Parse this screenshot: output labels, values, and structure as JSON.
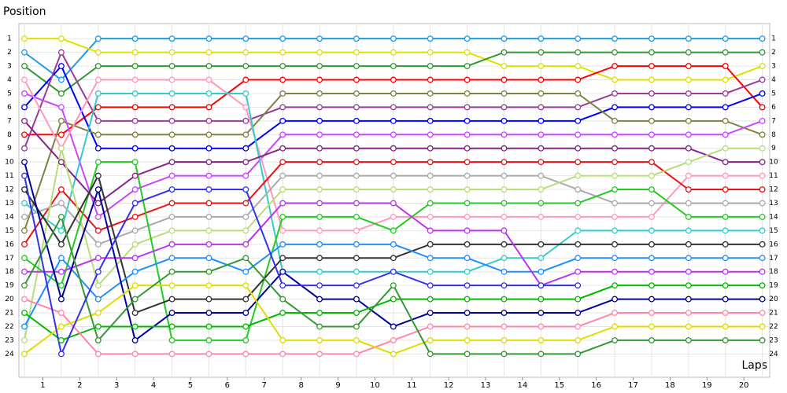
{
  "chart_data": {
    "type": "line",
    "y_label": "Position",
    "x_label": "Laps",
    "x": [
      0,
      1,
      2,
      3,
      4,
      5,
      6,
      7,
      8,
      9,
      10,
      11,
      12,
      13,
      14,
      15,
      16,
      17,
      18,
      19,
      20
    ],
    "xlim": [
      -0.15,
      20.2
    ],
    "xticks": [
      {
        "value": 0.5,
        "label": "1"
      },
      {
        "value": 1.5,
        "label": "2"
      },
      {
        "value": 2.5,
        "label": "3"
      },
      {
        "value": 3.5,
        "label": "4"
      },
      {
        "value": 4.5,
        "label": "5"
      },
      {
        "value": 5.5,
        "label": "6"
      },
      {
        "value": 6.5,
        "label": "7"
      },
      {
        "value": 7.5,
        "label": "8"
      },
      {
        "value": 8.5,
        "label": "9"
      },
      {
        "value": 9.5,
        "label": "10"
      },
      {
        "value": 10.5,
        "label": "11"
      },
      {
        "value": 11.5,
        "label": "12"
      },
      {
        "value": 12.5,
        "label": "13"
      },
      {
        "value": 13.5,
        "label": "14"
      },
      {
        "value": 14.5,
        "label": "15"
      },
      {
        "value": 15.5,
        "label": "16"
      },
      {
        "value": 16.5,
        "label": "17"
      },
      {
        "value": 17.5,
        "label": "18"
      },
      {
        "value": 18.5,
        "label": "19"
      },
      {
        "value": 19.5,
        "label": "20"
      }
    ],
    "ylim": [
      -0.1,
      25.7
    ],
    "y_inverted": true,
    "yticks": [
      1,
      2,
      3,
      4,
      5,
      6,
      7,
      8,
      9,
      10,
      11,
      12,
      13,
      14,
      15,
      16,
      17,
      18,
      19,
      20,
      21,
      22,
      23,
      24
    ],
    "grid": true,
    "series": [
      {
        "color": "#1e9be8",
        "values": [
          2,
          4,
          1,
          1,
          1,
          1,
          1,
          1,
          1,
          1,
          1,
          1,
          1,
          1,
          1,
          1,
          1,
          1,
          1,
          1,
          1
        ]
      },
      {
        "color": "#e0e000",
        "values": [
          1,
          1,
          2,
          2,
          2,
          2,
          2,
          2,
          2,
          2,
          2,
          2,
          2,
          3,
          3,
          3,
          4,
          4,
          4,
          4,
          3
        ]
      },
      {
        "color": "#2f9a2f",
        "values": [
          3,
          5,
          3,
          3,
          3,
          3,
          3,
          3,
          3,
          3,
          3,
          3,
          3,
          2,
          2,
          2,
          2,
          2,
          2,
          2,
          2
        ]
      },
      {
        "color": "#ff0000",
        "values": [
          8,
          8,
          6,
          6,
          6,
          6,
          4,
          4,
          4,
          4,
          4,
          4,
          4,
          4,
          4,
          4,
          3,
          3,
          3,
          3,
          6
        ]
      },
      {
        "color": "#0000ff",
        "values": [
          6,
          3,
          9,
          9,
          9,
          9,
          9,
          7,
          7,
          7,
          7,
          7,
          7,
          7,
          7,
          7,
          6,
          6,
          6,
          6,
          5
        ]
      },
      {
        "color": "#9a3a9a",
        "values": [
          9,
          2,
          7,
          7,
          7,
          7,
          7,
          6,
          6,
          6,
          6,
          6,
          6,
          6,
          6,
          6,
          5,
          5,
          5,
          5,
          4
        ]
      },
      {
        "color": "#808040",
        "values": [
          15,
          7,
          8,
          8,
          8,
          8,
          8,
          5,
          5,
          5,
          5,
          5,
          5,
          5,
          5,
          5,
          7,
          7,
          7,
          7,
          8
        ]
      },
      {
        "color": "#cc44ff",
        "values": [
          5,
          6,
          14,
          12,
          11,
          11,
          11,
          8,
          8,
          8,
          8,
          8,
          8,
          8,
          8,
          8,
          8,
          8,
          8,
          8,
          7
        ]
      },
      {
        "color": "#ff99bb",
        "values": [
          4,
          9,
          4,
          4,
          4,
          4,
          6,
          15,
          15,
          15,
          14,
          14,
          14,
          14,
          14,
          14,
          14,
          14,
          11,
          11,
          11
        ]
      },
      {
        "color": "#33cccc",
        "values": [
          13,
          15,
          5,
          5,
          5,
          5,
          5,
          18,
          18,
          18,
          18,
          18,
          18,
          17,
          17,
          15,
          15,
          15,
          15,
          15,
          15
        ]
      },
      {
        "color": "#882288",
        "values": [
          7,
          10,
          13,
          11,
          10,
          10,
          10,
          9,
          9,
          9,
          9,
          9,
          9,
          9,
          9,
          9,
          9,
          9,
          9,
          10,
          10
        ]
      },
      {
        "color": "#ee1111",
        "values": [
          16,
          12,
          15,
          14,
          13,
          13,
          13,
          10,
          10,
          10,
          10,
          10,
          10,
          10,
          10,
          10,
          10,
          10,
          12,
          12,
          12
        ]
      },
      {
        "color": "#aaaaaa",
        "values": [
          14,
          13,
          16,
          15,
          14,
          14,
          14,
          11,
          11,
          11,
          11,
          11,
          11,
          11,
          11,
          12,
          13,
          13,
          13,
          13,
          13
        ]
      },
      {
        "color": "#b8dd77",
        "values": [
          23,
          9,
          19,
          16,
          15,
          15,
          15,
          12,
          12,
          12,
          12,
          12,
          12,
          12,
          12,
          11,
          11,
          11,
          10,
          9,
          9
        ]
      },
      {
        "color": "#22cc22",
        "values": [
          17,
          19,
          10,
          10,
          23,
          23,
          23,
          14,
          14,
          14,
          15,
          13,
          13,
          13,
          13,
          13,
          12,
          12,
          14,
          14,
          14
        ]
      },
      {
        "color": "#333333",
        "values": [
          12,
          16,
          11,
          21,
          20,
          20,
          20,
          17,
          17,
          17,
          17,
          16,
          16,
          16,
          16,
          16,
          16,
          16,
          16,
          16,
          16
        ]
      },
      {
        "color": "#1e90ff",
        "values": [
          22,
          17,
          20,
          18,
          17,
          17,
          18,
          16,
          16,
          16,
          16,
          17,
          17,
          18,
          18,
          17,
          17,
          17,
          17,
          17,
          17
        ]
      },
      {
        "color": "#bb33ee",
        "values": [
          18,
          18,
          17,
          17,
          16,
          16,
          16,
          13,
          13,
          13,
          13,
          15,
          15,
          15,
          19,
          18,
          18,
          18,
          18,
          18,
          18
        ]
      },
      {
        "color": "#000099",
        "values": [
          10,
          20,
          12,
          23,
          21,
          21,
          21,
          18,
          20,
          20,
          22,
          21,
          21,
          21,
          21,
          21,
          20,
          20,
          20,
          20,
          20
        ]
      },
      {
        "color": "#00bb00",
        "values": [
          21,
          23,
          22,
          22,
          22,
          22,
          22,
          21,
          21,
          21,
          20,
          20,
          20,
          20,
          20,
          20,
          19,
          19,
          19,
          19,
          19
        ]
      },
      {
        "color": "#ff88aa",
        "values": [
          20,
          21,
          24,
          24,
          24,
          24,
          24,
          24,
          24,
          24,
          23,
          22,
          22,
          22,
          22,
          22,
          21,
          21,
          21,
          21,
          21
        ]
      },
      {
        "color": "#dddd00",
        "values": [
          24,
          22,
          21,
          19,
          19,
          19,
          19,
          23,
          23,
          23,
          24,
          23,
          23,
          23,
          23,
          23,
          22,
          22,
          22,
          22,
          22
        ]
      },
      {
        "color": "#339933",
        "values": [
          19,
          14,
          23,
          20,
          18,
          18,
          17,
          20,
          22,
          22,
          19,
          24,
          24,
          24,
          24,
          24,
          23,
          23,
          23,
          23,
          23
        ]
      },
      {
        "color": "#3333ee",
        "values": [
          11,
          24,
          18,
          13,
          12,
          12,
          12,
          19,
          19,
          19,
          18,
          19,
          19,
          19,
          19,
          19,
          null,
          null,
          null,
          null,
          null
        ]
      }
    ]
  }
}
